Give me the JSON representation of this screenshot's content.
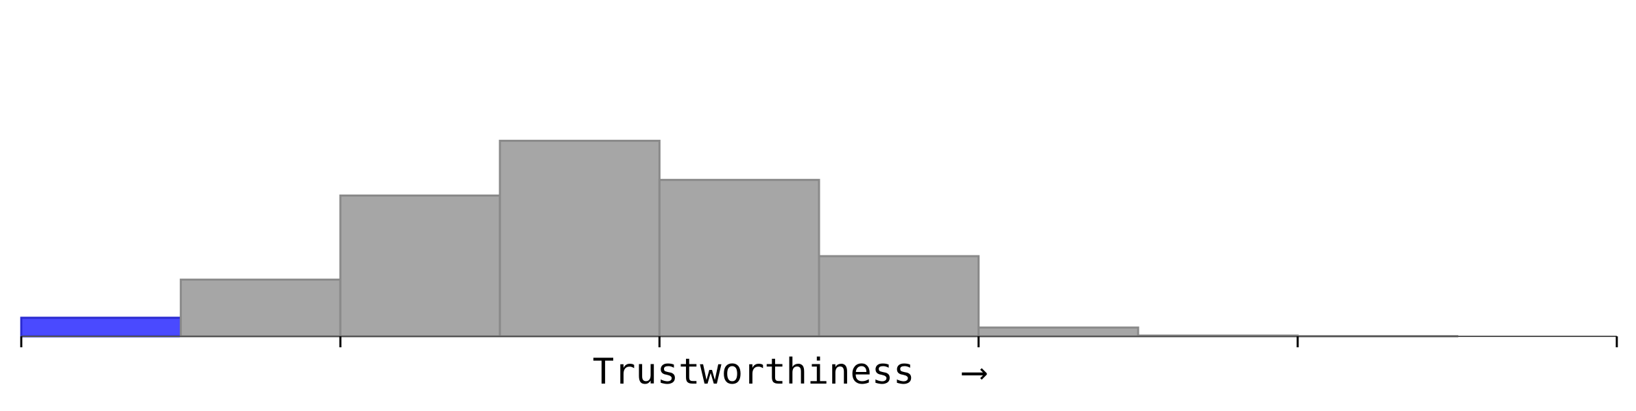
{
  "chart_data": {
    "type": "histogram",
    "xlabel": "Trustworthiness",
    "xlabel_arrow": "⟶",
    "bins": 10,
    "values": [
      0.095,
      0.29,
      0.72,
      1.0,
      0.8,
      0.41,
      0.045,
      0.004,
      0.001,
      0.0
    ],
    "highlight_bins": [
      0
    ],
    "ylim": [
      0,
      1.72
    ],
    "x_ticks": 6,
    "grid": false,
    "legend": "none",
    "colors": {
      "bar_fill": "#a6a6a6",
      "bar_stroke": "#8a8a8a",
      "highlight_fill": "#4a4aff",
      "highlight_stroke": "#2a2ad0",
      "axis": "#555555"
    }
  }
}
